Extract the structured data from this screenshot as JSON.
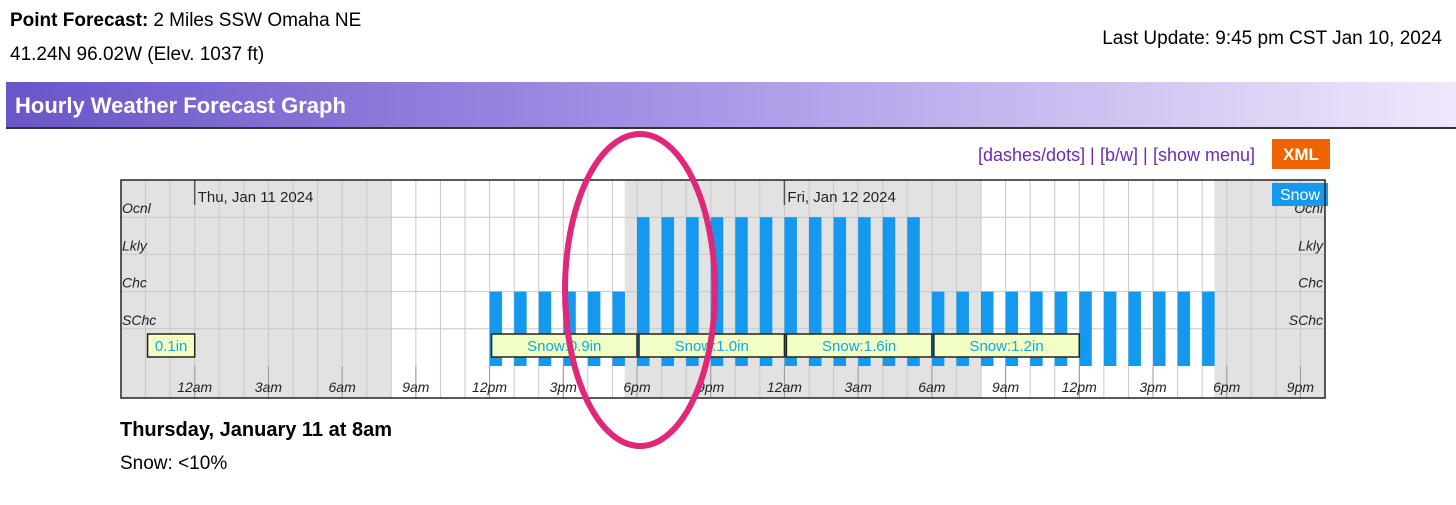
{
  "header": {
    "point_forecast_label": "Point Forecast:",
    "location": "2 Miles SSW Omaha NE",
    "coordinates": "41.24N 96.02W (Elev. 1037 ft)",
    "last_update": "Last Update: 9:45 pm CST Jan 10, 2024"
  },
  "banner": {
    "title": "Hourly Weather Forecast Graph"
  },
  "links": {
    "items": [
      "[dashes/dots]",
      "[b/w]",
      "[show menu]"
    ],
    "separator": "|"
  },
  "xml_button": "XML",
  "chart_data": {
    "type": "bar",
    "series": [
      {
        "name": "Snow",
        "color": "#1499ee",
        "x": [
          12,
          13,
          14,
          15,
          16,
          17,
          18,
          19,
          20,
          21,
          22,
          23,
          24,
          25,
          26,
          27,
          28,
          29,
          30,
          31,
          32,
          33,
          34,
          35,
          36,
          37,
          38,
          39,
          40,
          41
        ],
        "values": [
          40,
          40,
          40,
          40,
          40,
          40,
          80,
          80,
          80,
          80,
          80,
          80,
          80,
          80,
          80,
          80,
          80,
          80,
          40,
          40,
          40,
          40,
          40,
          40,
          40,
          40,
          40,
          40,
          40,
          40
        ]
      }
    ],
    "xlim": [
      -3,
      46
    ],
    "xticks": [
      {
        "value": 0,
        "label": "12am"
      },
      {
        "value": 3,
        "label": "3am"
      },
      {
        "value": 6,
        "label": "6am"
      },
      {
        "value": 9,
        "label": "9am"
      },
      {
        "value": 12,
        "label": "12pm"
      },
      {
        "value": 15,
        "label": "3pm"
      },
      {
        "value": 18,
        "label": "6pm"
      },
      {
        "value": 21,
        "label": "9pm"
      },
      {
        "value": 24,
        "label": "12am"
      },
      {
        "value": 27,
        "label": "3am"
      },
      {
        "value": 30,
        "label": "6am"
      },
      {
        "value": 33,
        "label": "9am"
      },
      {
        "value": 36,
        "label": "12pm"
      },
      {
        "value": 39,
        "label": "3pm"
      },
      {
        "value": 42,
        "label": "6pm"
      },
      {
        "value": 45,
        "label": "9pm"
      }
    ],
    "ylim": [
      0,
      100
    ],
    "yticks": [
      {
        "value": 20,
        "label": "SChc"
      },
      {
        "value": 40,
        "label": "Chc"
      },
      {
        "value": 60,
        "label": "Lkly"
      },
      {
        "value": 80,
        "label": "Ocnl"
      }
    ],
    "days": [
      {
        "label": "Thu, Jan 11 2024",
        "x": 0
      },
      {
        "label": "Fri, Jan 12 2024",
        "x": 24
      }
    ],
    "amounts": [
      {
        "label": "0.1in",
        "start": -2,
        "end": 0
      },
      {
        "label": "Snow:0.9in",
        "start": 12,
        "end": 18
      },
      {
        "label": "Snow:1.0in",
        "start": 18,
        "end": 24
      },
      {
        "label": "Snow:1.6in",
        "start": 24,
        "end": 30
      },
      {
        "label": "Snow:1.2in",
        "start": 30,
        "end": 36
      }
    ],
    "night": [
      [
        -3,
        8
      ],
      [
        17.5,
        32
      ],
      [
        41.5,
        46
      ]
    ]
  },
  "detail": {
    "title": "Thursday, January 11 at 8am",
    "text": "Snow: <10%"
  }
}
